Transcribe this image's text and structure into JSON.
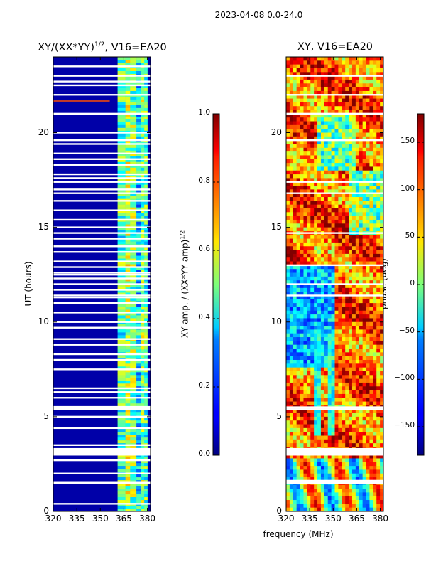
{
  "suptitle": "2023-04-08 0.0-24.0",
  "left_panel": {
    "title_main": "XY/(XX*YY)",
    "title_sup": "1/2",
    "title_tail": ", V16=EA20",
    "ylabel": "UT (hours)",
    "yticks": [
      "0",
      "5",
      "10",
      "15",
      "20"
    ],
    "xticks": [
      "320",
      "335",
      "350",
      "365",
      "380"
    ],
    "colorbar": {
      "label_main": "XY amp. / (XX*YY amp)",
      "label_sup": "1/2",
      "ticks": [
        "0.0",
        "0.2",
        "0.4",
        "0.6",
        "0.8",
        "1.0"
      ],
      "range": [
        0.0,
        1.0
      ]
    }
  },
  "right_panel": {
    "title": "XY, V16=EA20",
    "yticks": [
      "0",
      "5",
      "10",
      "15",
      "20"
    ],
    "xticks": [
      "320",
      "335",
      "350",
      "365",
      "380"
    ],
    "colorbar": {
      "label": "phase (deg)",
      "ticks": [
        "−150",
        "−100",
        "−50",
        "0",
        "50",
        "100",
        "150"
      ],
      "range": [
        -180,
        180
      ]
    }
  },
  "xlabel": "frequency (MHz)",
  "chart_data": [
    {
      "type": "heatmap",
      "title": "XY/(XX*YY)^1/2, V16=EA20",
      "xlabel": "frequency (MHz)",
      "ylabel": "UT (hours)",
      "xlim": [
        320,
        382
      ],
      "ylim": [
        0,
        24
      ],
      "xticks": [
        320,
        335,
        350,
        365,
        380
      ],
      "yticks": [
        0,
        5,
        10,
        15,
        20
      ],
      "colorbar_range": [
        0.0,
        1.0
      ],
      "colorbar_ticks": [
        0.0,
        0.2,
        0.4,
        0.6,
        0.8,
        1.0
      ],
      "colormap": "jet",
      "frequency_bands_mhz": [
        [
          320,
          361,
          0.03
        ],
        [
          361,
          366,
          0.45
        ],
        [
          366,
          369,
          0.55
        ],
        [
          369,
          373,
          0.5
        ],
        [
          373,
          376,
          0.35
        ],
        [
          376,
          378,
          0.5
        ],
        [
          378,
          380,
          0.45
        ],
        [
          380,
          382,
          0.1
        ]
      ],
      "flagged_rows_hours": [
        0.4,
        1.5,
        1.55,
        2.0,
        2.7,
        3.0,
        3.1,
        3.3,
        3.5,
        4.4,
        5.0,
        5.4,
        5.5,
        6.0,
        6.3,
        6.5,
        7.5,
        8.0,
        8.3,
        8.8,
        9.1,
        9.7,
        10.0,
        10.5,
        11.0,
        11.3,
        11.4,
        11.7,
        12.0,
        12.3,
        12.5,
        12.6,
        12.9,
        13.2,
        13.7,
        14.0,
        14.4,
        14.7,
        15.0,
        15.4,
        15.9,
        16.4,
        16.8,
        17.0,
        17.4,
        17.6,
        17.8,
        18.3,
        18.6,
        18.9,
        19.4,
        19.6,
        20.0,
        21.0,
        22.0,
        22.5,
        22.7,
        23.0,
        23.5
      ]
    },
    {
      "type": "heatmap",
      "title": "XY, V16=EA20",
      "xlabel": "frequency (MHz)",
      "ylabel": "",
      "xlim": [
        320,
        382
      ],
      "ylim": [
        0,
        24
      ],
      "xticks": [
        320,
        335,
        350,
        365,
        380
      ],
      "yticks": [
        0,
        5,
        10,
        15,
        20
      ],
      "colorbar_range": [
        -180,
        180
      ],
      "colorbar_ticks": [
        -150,
        -100,
        -50,
        0,
        50,
        100,
        150
      ],
      "colormap": "jet",
      "colorbar_label": "phase (deg)",
      "flagged_rows_hours": [
        1.5,
        1.55,
        3.0,
        3.1,
        3.3,
        5.4,
        5.5,
        11.4,
        12.0,
        13.0,
        14.7,
        16.8,
        17.4,
        19.6,
        21.0,
        22.0,
        23.0
      ]
    }
  ]
}
